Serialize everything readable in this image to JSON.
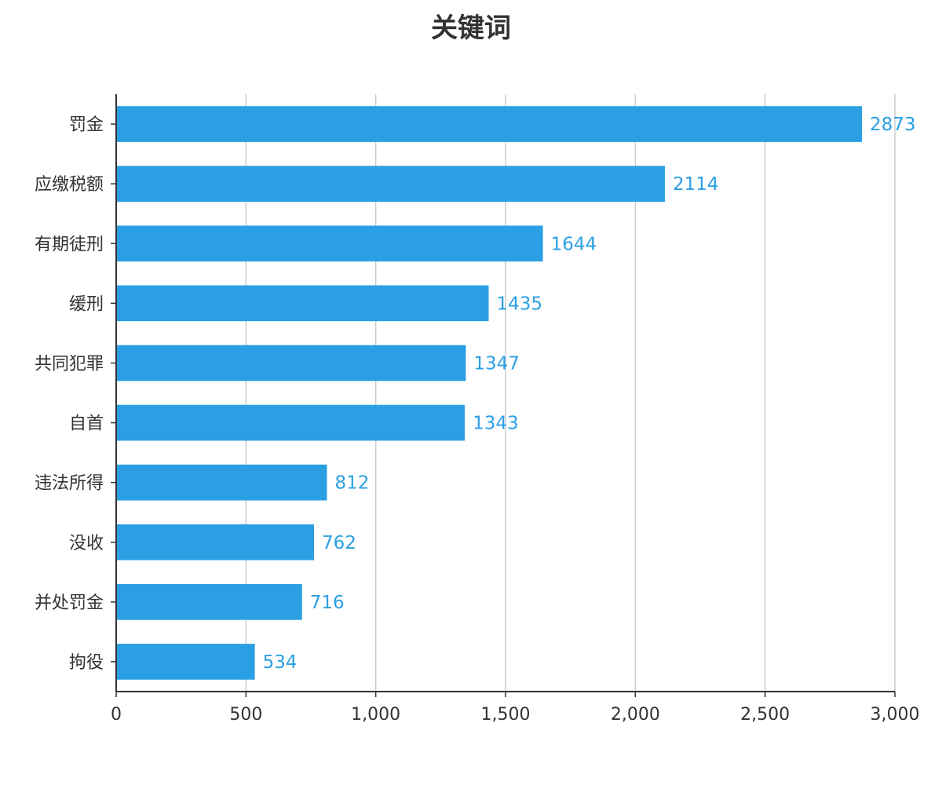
{
  "chart_data": {
    "type": "bar",
    "orientation": "horizontal",
    "title": "关键词",
    "categories": [
      "罚金",
      "应缴税额",
      "有期徒刑",
      "缓刑",
      "共同犯罪",
      "自首",
      "违法所得",
      "没收",
      "并处罚金",
      "拘役"
    ],
    "values": [
      2873,
      2114,
      1644,
      1435,
      1347,
      1343,
      812,
      762,
      716,
      534
    ],
    "value_labels": [
      "2873",
      "2114",
      "1644",
      "1435",
      "1347",
      "1343",
      "812",
      "762",
      "716",
      "534"
    ],
    "xlim": [
      0,
      3000
    ],
    "x_ticks": [
      0,
      500,
      1000,
      1500,
      2000,
      2500,
      3000
    ],
    "x_tick_labels": [
      "0",
      "500",
      "1,000",
      "1,500",
      "2,000",
      "2,500",
      "3,000"
    ],
    "grid": true,
    "legend": "none",
    "bar_color": "#2b9fe4",
    "label_color": "#2b9fe4",
    "grid_color": "#cccccc",
    "axis_color": "#333333"
  }
}
